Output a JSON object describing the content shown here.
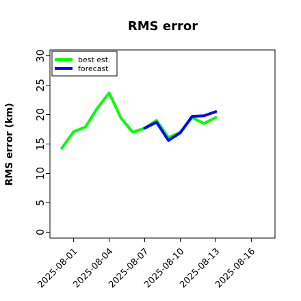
{
  "chart_data": {
    "type": "line",
    "title": "RMS error",
    "xlabel": "",
    "ylabel": "RMS error (km)",
    "xlim": [
      "2025-07-30",
      "2025-08-18"
    ],
    "ylim": [
      -1,
      31
    ],
    "yticks": [
      0,
      5,
      10,
      15,
      20,
      25,
      30
    ],
    "xticks": [
      {
        "date": "2025-08-01",
        "label": "2025-08-01",
        "color": "#000000"
      },
      {
        "date": "2025-08-04",
        "label": "2025-08-04",
        "color": "#000000"
      },
      {
        "date": "2025-08-07",
        "label": "2025-08-07",
        "color": "#228b22"
      },
      {
        "date": "2025-08-10",
        "label": "2025-08-10",
        "color": "#000000"
      },
      {
        "date": "2025-08-13",
        "label": "2025-08-13",
        "color": "#000000"
      },
      {
        "date": "2025-08-16",
        "label": "2025-08-16",
        "color": "#000000"
      }
    ],
    "grid": false,
    "legend_position": "top-left",
    "series": [
      {
        "name": "best est.",
        "color": "#00ff00",
        "x": [
          "2025-07-31",
          "2025-08-01",
          "2025-08-02",
          "2025-08-03",
          "2025-08-04",
          "2025-08-05",
          "2025-08-06",
          "2025-08-07",
          "2025-08-08",
          "2025-08-09",
          "2025-08-10",
          "2025-08-11",
          "2025-08-12",
          "2025-08-13"
        ],
        "y": [
          14.3,
          17.1,
          17.9,
          21.1,
          23.7,
          19.4,
          17.0,
          17.7,
          19.0,
          16.1,
          17.0,
          19.5,
          18.5,
          19.5
        ]
      },
      {
        "name": "forecast",
        "color": "#0000ff",
        "x": [
          "2025-08-07",
          "2025-08-08",
          "2025-08-09",
          "2025-08-10",
          "2025-08-11",
          "2025-08-12",
          "2025-08-13"
        ],
        "y": [
          17.7,
          18.7,
          15.6,
          16.9,
          19.7,
          19.8,
          20.5
        ]
      }
    ]
  }
}
